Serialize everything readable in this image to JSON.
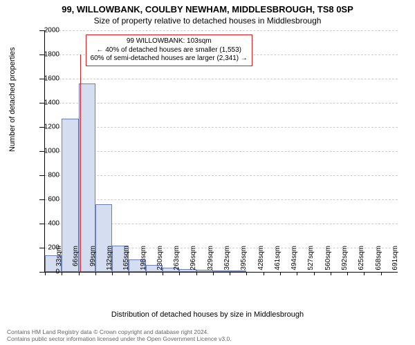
{
  "title_main": "99, WILLOWBANK, COULBY NEWHAM, MIDDLESBROUGH, TS8 0SP",
  "title_sub": "Size of property relative to detached houses in Middlesbrough",
  "y_axis_title": "Number of detached properties",
  "x_axis_title": "Distribution of detached houses by size in Middlesbrough",
  "chart": {
    "type": "histogram",
    "background_color": "#ffffff",
    "grid_color": "#cccccc",
    "bar_fill": "#d5ddf0",
    "bar_border": "#6a7fb8",
    "highlight_color": "#d02020",
    "ylim": [
      0,
      2000
    ],
    "ytick_step": 200,
    "y_ticks": [
      0,
      200,
      400,
      600,
      800,
      1000,
      1200,
      1400,
      1600,
      1800,
      2000
    ],
    "x_labels": [
      "33sqm",
      "66sqm",
      "99sqm",
      "132sqm",
      "165sqm",
      "198sqm",
      "230sqm",
      "263sqm",
      "296sqm",
      "329sqm",
      "362sqm",
      "395sqm",
      "428sqm",
      "461sqm",
      "494sqm",
      "527sqm",
      "560sqm",
      "592sqm",
      "625sqm",
      "658sqm",
      "691sqm"
    ],
    "values": [
      135,
      1270,
      1560,
      560,
      215,
      105,
      60,
      35,
      25,
      18,
      12,
      8
    ],
    "highlight_bin_index": 2,
    "callout": {
      "line1": "99 WILLOWBANK: 103sqm",
      "line2": "← 40% of detached houses are smaller (1,553)",
      "line3": "60% of semi-detached houses are larger (2,341) →"
    }
  },
  "footer": {
    "line1": "Contains HM Land Registry data © Crown copyright and database right 2024.",
    "line2": "Contains public sector information licensed under the Open Government Licence v3.0."
  },
  "fonts": {
    "title_size_pt": 13,
    "subtitle_size_pt": 12,
    "axis_label_size_pt": 11,
    "tick_size_pt": 10,
    "footer_size_pt": 8.5
  }
}
